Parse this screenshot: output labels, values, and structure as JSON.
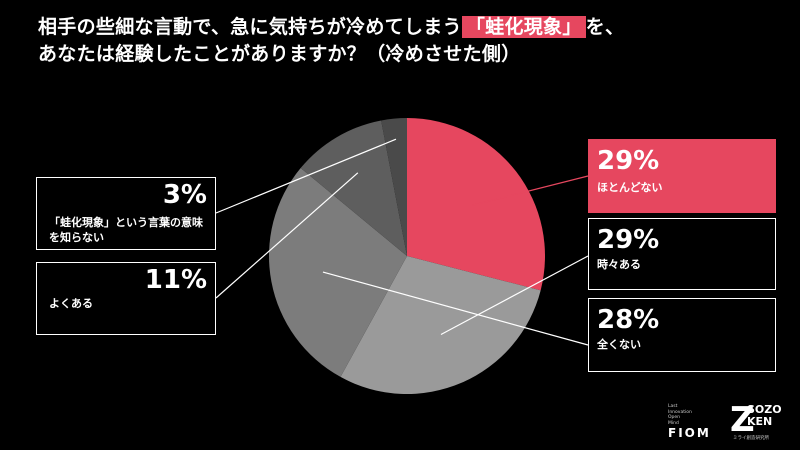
{
  "title": {
    "line1_before": "相手の些細な言動で、急に気持ちが冷めてしまう",
    "line1_highlight": "「蛙化現象」",
    "line1_after": "を、",
    "line2": "あなたは経験したことがありますか？（冷めさせた側）"
  },
  "colors": {
    "accent": "#e6475f",
    "background": "#000000"
  },
  "chart_data": {
    "type": "pie",
    "slices": [
      {
        "label": "ほとんどない",
        "value": 29,
        "display": "29%",
        "color": "#e6475f"
      },
      {
        "label": "時々ある",
        "value": 29,
        "display": "29%",
        "color": "#9a9a9a"
      },
      {
        "label": "全くない",
        "value": 28,
        "display": "28%",
        "color": "#7c7c7c"
      },
      {
        "label": "よくある",
        "value": 11,
        "display": "11%",
        "color": "#5e5e5e"
      },
      {
        "label": "「蛙化現象」という言葉の意味を知らない",
        "value": 3,
        "display": "3%",
        "color": "#4a4a4a"
      }
    ]
  },
  "logos": {
    "fiom_small": [
      "Last",
      "Innovation",
      "Open",
      "Mind"
    ],
    "fiom_big": "FIOM",
    "sozo_z": "Z",
    "sozo_top": "SOZO",
    "sozo_bottom": "KEN",
    "sozo_sub": "ミライ創造研究所"
  }
}
